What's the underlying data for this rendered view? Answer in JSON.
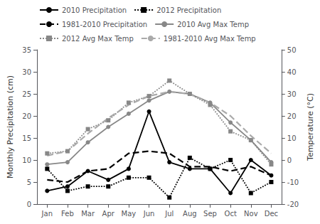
{
  "chart_data": {
    "type": "line",
    "categories": [
      "Jan",
      "Feb",
      "Mar",
      "Apr",
      "May",
      "Jun",
      "Jul",
      "Aug",
      "Sep",
      "Oct",
      "Nov",
      "Dec"
    ],
    "series": [
      {
        "name": "2010 Precipitation",
        "color": "#000000",
        "marker": "circle",
        "line_style": "solid",
        "axis": "y",
        "values": [
          3.0,
          4.0,
          7.5,
          5.5,
          8.0,
          21.0,
          9.5,
          8.0,
          8.0,
          2.5,
          10.0,
          6.5
        ]
      },
      {
        "name": "2012 Precipitation",
        "color": "#000000",
        "marker": "square",
        "line_style": "dotted",
        "axis": "y",
        "values": [
          8.0,
          3.0,
          4.0,
          4.0,
          6.0,
          6.0,
          1.5,
          10.5,
          8.0,
          10.0,
          2.5,
          5.0
        ]
      },
      {
        "name": "1981-2010 Precipitation",
        "color": "#000000",
        "marker": "none",
        "line_style": "dashed",
        "axis": "y",
        "values": [
          5.5,
          5.0,
          7.5,
          8.0,
          11.5,
          12.0,
          11.5,
          8.5,
          8.5,
          7.5,
          8.5,
          6.5
        ]
      },
      {
        "name": "2010 Avg Max Temp",
        "color": "#888888",
        "marker": "circle",
        "line_style": "solid",
        "axis": "y2",
        "values": [
          -2.0,
          -1.0,
          8.0,
          15.0,
          21.0,
          27.0,
          31.0,
          30.0,
          26.0,
          17.0,
          9.0,
          -1.0
        ]
      },
      {
        "name": "2012 Avg Max Temp",
        "color": "#888888",
        "marker": "square",
        "line_style": "dotted",
        "axis": "y2",
        "values": [
          3.0,
          4.0,
          14.0,
          18.0,
          26.0,
          29.0,
          36.0,
          30.0,
          25.0,
          13.0,
          9.0,
          -2.0
        ]
      },
      {
        "name": "1981-2010 Avg Max Temp",
        "color": "#aaaaaa",
        "marker": "none",
        "line_style": "dashed",
        "axis": "y2",
        "values": [
          2.0,
          4.0,
          12.0,
          19.0,
          25.0,
          29.0,
          31.0,
          30.0,
          26.0,
          20.0,
          11.0,
          3.0
        ]
      }
    ],
    "ylabel": "Monthly Precipitation (cm)",
    "y2label": "Temperature (°C)",
    "ylim": [
      0,
      35
    ],
    "yticks": [
      0,
      5,
      10,
      15,
      20,
      25,
      30,
      35
    ],
    "y2lim": [
      -20,
      50
    ],
    "y2ticks": [
      -20,
      -10,
      0,
      10,
      20,
      30,
      40,
      50
    ],
    "legend": "upper left",
    "grid": false
  }
}
